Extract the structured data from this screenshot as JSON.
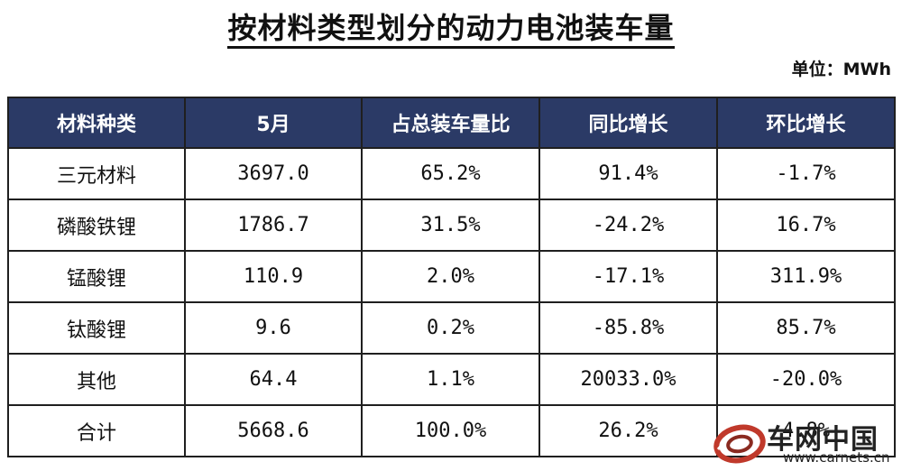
{
  "title": "按材料类型划分的动力电池装车量",
  "unit": "单位：MWh",
  "chart_data": {
    "type": "table",
    "columns": [
      "材料种类",
      "5月",
      "占总装车量比",
      "同比增长",
      "环比增长"
    ],
    "rows": [
      [
        "三元材料",
        "3697.0",
        "65.2%",
        "91.4%",
        "-1.7%"
      ],
      [
        "磷酸铁锂",
        "1786.7",
        "31.5%",
        "-24.2%",
        "16.7%"
      ],
      [
        "锰酸锂",
        "110.9",
        "2.0%",
        "-17.1%",
        "311.9%"
      ],
      [
        "钛酸锂",
        "9.6",
        "0.2%",
        "-85.8%",
        "85.7%"
      ],
      [
        "其他",
        "64.4",
        "1.1%",
        "20033.0%",
        "-20.0%"
      ],
      [
        "合计",
        "5668.6",
        "100.0%",
        "26.2%",
        "4.8%"
      ]
    ]
  },
  "watermark": {
    "name": "车网中国",
    "url": "www.carnets.cn"
  },
  "colors": {
    "header_bg": "#2b3a66",
    "header_text": "#ffffff",
    "logo_red": "#c0392b"
  }
}
